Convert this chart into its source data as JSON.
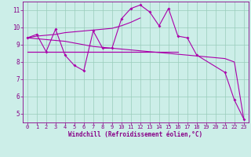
{
  "x": [
    0,
    1,
    2,
    3,
    4,
    5,
    6,
    7,
    8,
    9,
    10,
    11,
    12,
    13,
    14,
    15,
    16,
    17,
    18,
    19,
    20,
    21,
    22,
    23
  ],
  "line_zigzag": [
    9.4,
    9.6,
    8.6,
    9.9,
    8.4,
    7.8,
    7.5,
    9.8,
    8.8,
    8.8,
    10.5,
    11.1,
    11.3,
    10.9,
    10.1,
    11.1,
    9.5,
    9.4,
    8.4,
    null,
    null,
    7.4,
    5.8,
    4.7
  ],
  "line_rising": [
    9.4,
    9.5,
    9.55,
    9.6,
    9.7,
    9.75,
    9.8,
    9.85,
    9.9,
    9.95,
    10.1,
    10.3,
    10.55,
    null,
    null,
    null,
    null,
    null,
    null,
    null,
    null,
    null,
    null,
    null
  ],
  "line_h1": [
    8.6,
    8.6,
    8.6,
    8.6,
    8.6,
    8.6,
    8.6,
    8.6,
    8.6,
    8.6,
    8.6,
    8.6,
    8.6,
    8.6,
    8.6,
    8.6,
    8.6,
    null,
    null,
    null,
    null,
    null,
    null,
    null
  ],
  "line_h2": [
    8.6,
    8.6,
    8.6,
    8.6,
    8.6,
    8.6,
    8.6,
    8.6,
    8.6,
    8.6,
    8.6,
    8.6,
    8.6,
    8.6,
    8.6,
    null,
    null,
    null,
    null,
    null,
    null,
    null,
    null,
    null
  ],
  "line_trend": [
    9.4,
    9.35,
    9.3,
    9.25,
    9.2,
    9.1,
    9.0,
    8.9,
    8.85,
    8.8,
    8.75,
    8.7,
    8.65,
    8.6,
    8.55,
    8.5,
    8.45,
    8.4,
    8.35,
    8.3,
    8.25,
    8.2,
    8.0,
    4.7
  ],
  "bg_color": "#cceee8",
  "grid_color": "#99ccbb",
  "line_color": "#aa00aa",
  "marker_color": "#aa00aa",
  "xlabel": "Windchill (Refroidissement éolien,°C)",
  "ylim_min": 4.5,
  "ylim_max": 11.5,
  "xlim_min": -0.5,
  "xlim_max": 23.5,
  "yticks": [
    5,
    6,
    7,
    8,
    9,
    10,
    11
  ],
  "xticks": [
    0,
    1,
    2,
    3,
    4,
    5,
    6,
    7,
    8,
    9,
    10,
    11,
    12,
    13,
    14,
    15,
    16,
    17,
    18,
    19,
    20,
    21,
    22,
    23
  ],
  "tick_color": "#880088",
  "label_color": "#880088"
}
